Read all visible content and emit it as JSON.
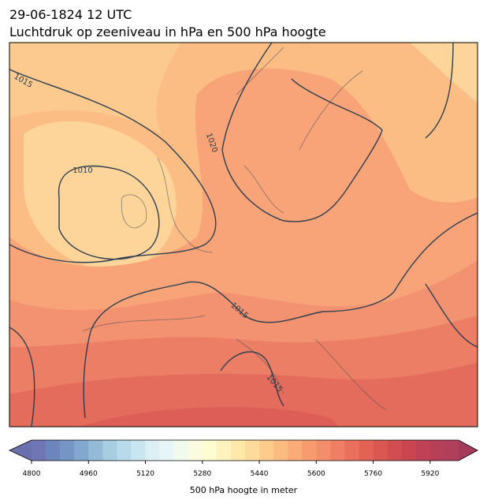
{
  "title": [
    "29-06-1824 12 UTC",
    "Luchtdruk op zeeniveau in hPa en 500 hPa hoogte"
  ],
  "map": {
    "isobar_labels": [
      "1015",
      "1010",
      "1020",
      "1015",
      "1015"
    ]
  },
  "colorbar": {
    "label": "500 hPa hoogte in meter",
    "lim": [
      4800,
      6000
    ],
    "ticks": [
      4800,
      4960,
      5120,
      5280,
      5440,
      5600,
      5760,
      5920
    ],
    "colors": [
      "#6f75b5",
      "#6d85bd",
      "#7596c5",
      "#83a8cf",
      "#93bbd8",
      "#a6cde2",
      "#b7dbea",
      "#c9e6f0",
      "#dbeff5",
      "#e8f5f6",
      "#f2f9ed",
      "#fbfcdf",
      "#fefcd0",
      "#fef3bd",
      "#fee8aa",
      "#fedb9b",
      "#fdcc8c",
      "#fcbc80",
      "#fbab77",
      "#f89c6f",
      "#f48d69",
      "#ef7e62",
      "#e9705c",
      "#e26356",
      "#da5752",
      "#d24d50",
      "#c94651",
      "#c04155",
      "#b83f58",
      "#b03f5c"
    ],
    "under": "#6a6fae",
    "over": "#a63a5a"
  }
}
